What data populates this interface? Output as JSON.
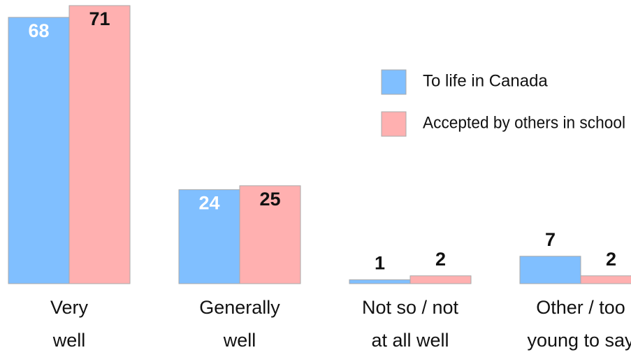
{
  "chart_data": {
    "type": "bar",
    "categories": [
      [
        "Very",
        "well"
      ],
      [
        "Generally",
        "well"
      ],
      [
        "Not so / not",
        "at all well"
      ],
      [
        "Other / too",
        "young to say"
      ]
    ],
    "series": [
      {
        "name": "To life in Canada",
        "color": "#80bfff",
        "values": [
          68,
          24,
          1,
          7
        ]
      },
      {
        "name": "Accepted by others in school",
        "color": "#ffb0b0",
        "values": [
          71,
          25,
          2,
          2
        ]
      }
    ],
    "legend": "upper right"
  }
}
